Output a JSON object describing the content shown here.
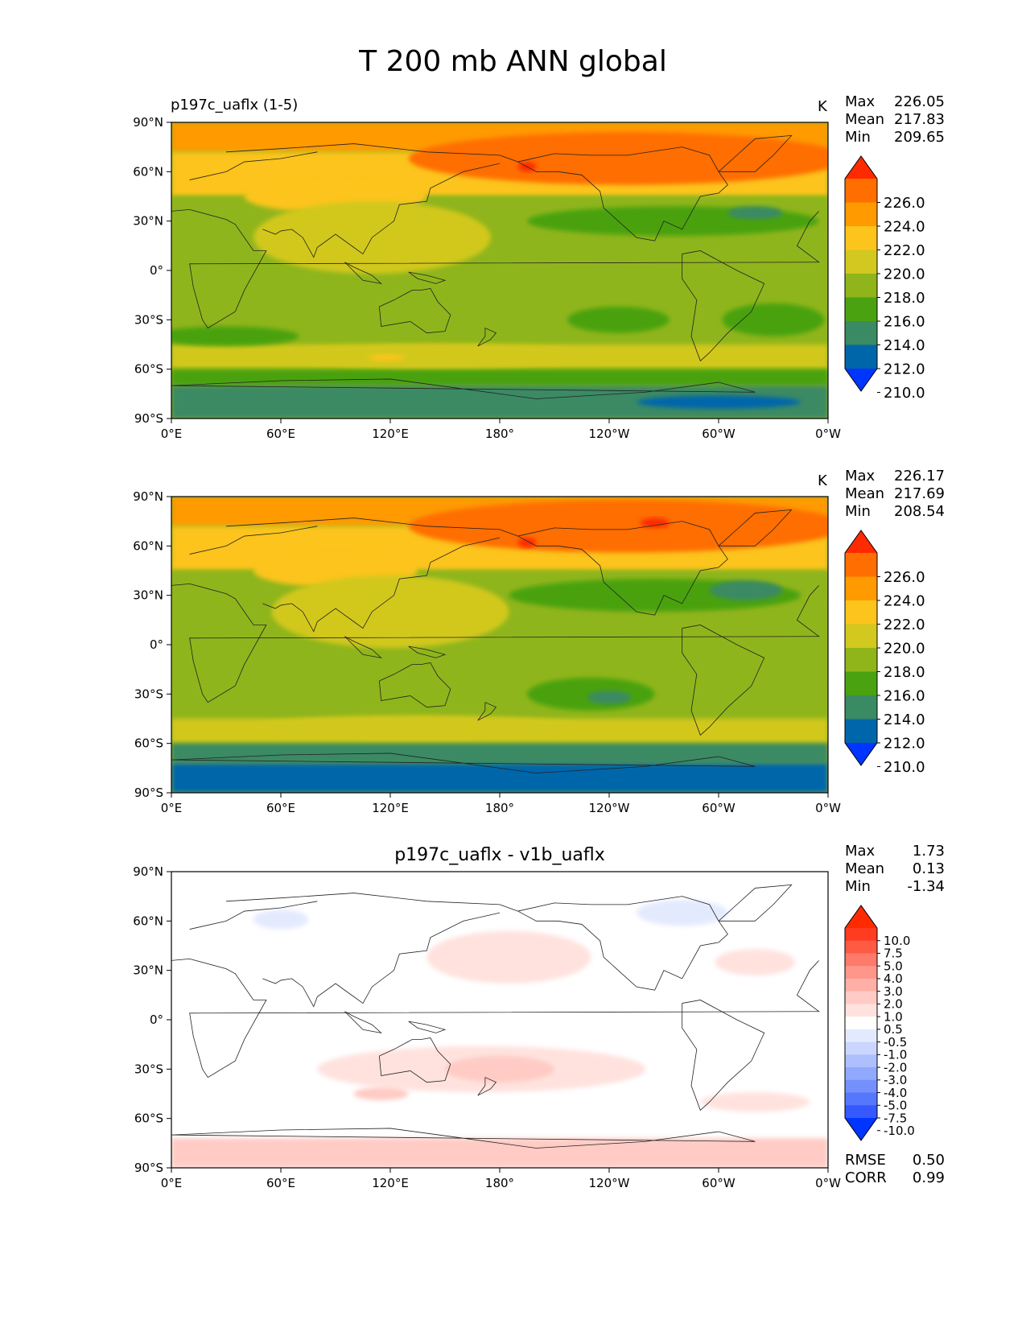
{
  "figure": {
    "title": "T 200 mb ANN global"
  },
  "axes": {
    "lat_ticks": [
      "90°N",
      "60°N",
      "30°N",
      "0°",
      "30°S",
      "60°S",
      "90°S"
    ],
    "lon_ticks": [
      "0°E",
      "60°E",
      "120°E",
      "180°",
      "120°W",
      "60°W",
      "0°W"
    ]
  },
  "panels": [
    {
      "left_title": "p197c_uaflx (1-5)",
      "center_title": "",
      "units": "K",
      "stats": [
        {
          "label": "Max",
          "value": "226.05"
        },
        {
          "label": "Mean",
          "value": "217.83"
        },
        {
          "label": "Min",
          "value": "209.65"
        }
      ],
      "colorbar": {
        "labels": [
          "226.0",
          "224.0",
          "222.0",
          "220.0",
          "218.0",
          "216.0",
          "214.0",
          "212.0",
          "210.0"
        ],
        "colors": [
          "#ff2a00",
          "#ff6e00",
          "#ff9a00",
          "#fcc41c",
          "#d2c81f",
          "#8fb51a",
          "#4aa211",
          "#3a8a63",
          "#0066aa",
          "#0035ff"
        ]
      },
      "footer": []
    },
    {
      "left_title": "",
      "center_title": "",
      "units": "K",
      "stats": [
        {
          "label": "Max",
          "value": "226.17"
        },
        {
          "label": "Mean",
          "value": "217.69"
        },
        {
          "label": "Min",
          "value": "208.54"
        }
      ],
      "colorbar": {
        "labels": [
          "226.0",
          "224.0",
          "222.0",
          "220.0",
          "218.0",
          "216.0",
          "214.0",
          "212.0",
          "210.0"
        ],
        "colors": [
          "#ff2a00",
          "#ff6e00",
          "#ff9a00",
          "#fcc41c",
          "#d2c81f",
          "#8fb51a",
          "#4aa211",
          "#3a8a63",
          "#0066aa",
          "#0035ff"
        ]
      },
      "footer": []
    },
    {
      "left_title": "",
      "center_title": "p197c_uaflx - v1b_uaflx",
      "units": "",
      "stats": [
        {
          "label": "Max",
          "value": "1.73"
        },
        {
          "label": "Mean",
          "value": "0.13"
        },
        {
          "label": "Min",
          "value": "-1.34"
        }
      ],
      "colorbar": {
        "labels": [
          "10.0",
          "7.5",
          "5.0",
          "4.0",
          "3.0",
          "2.0",
          "1.0",
          "0.5",
          "-0.5",
          "-1.0",
          "-2.0",
          "-3.0",
          "-4.0",
          "-5.0",
          "-7.5",
          "-10.0"
        ],
        "colors": [
          "#ff2a00",
          "#ff3b20",
          "#ff5a44",
          "#ff7a6a",
          "#ff968a",
          "#ffb0a6",
          "#ffcbc4",
          "#ffe2de",
          "#ffffff",
          "#e4eafe",
          "#cad6fe",
          "#adbffd",
          "#90a8fd",
          "#7390fd",
          "#5577fd",
          "#3558ff",
          "#0035ff"
        ]
      },
      "footer": [
        {
          "label": "RMSE",
          "value": "0.50"
        },
        {
          "label": "CORR",
          "value": "0.99"
        }
      ]
    }
  ],
  "chart_data": [
    {
      "type": "heatmap",
      "title": "p197c_uaflx (1-5)",
      "units": "K",
      "projection": "PlateCarree, central longitude 180",
      "xlim": [
        0,
        360
      ],
      "ylim": [
        -90,
        90
      ],
      "stats": {
        "max": 226.05,
        "mean": 217.83,
        "min": 209.65
      },
      "levels": [
        210,
        212,
        214,
        216,
        218,
        220,
        222,
        224,
        226
      ],
      "zonal_bands": [
        {
          "lat_range": [
            72,
            90
          ],
          "level": 222
        },
        {
          "lat_range": [
            45,
            72
          ],
          "level": 220
        },
        {
          "lat_range": [
            25,
            45
          ],
          "level": 216
        },
        {
          "lat_range": [
            -25,
            25
          ],
          "level": 216
        },
        {
          "lat_range": [
            -45,
            -25
          ],
          "level": 216
        },
        {
          "lat_range": [
            -60,
            -45
          ],
          "level": 218
        },
        {
          "lat_range": [
            -70,
            -60
          ],
          "level": 214
        },
        {
          "lat_range": [
            -90,
            -70
          ],
          "level": 212
        }
      ],
      "features": [
        {
          "lon": 250,
          "lat": 68,
          "dlon": 120,
          "dlat": 16,
          "level": 224
        },
        {
          "lon": 195,
          "lat": 63,
          "dlon": 5,
          "dlat": 3,
          "level": 226
        },
        {
          "lon": 90,
          "lat": 45,
          "dlon": 50,
          "dlat": 10,
          "level": 220
        },
        {
          "lon": 110,
          "lat": 20,
          "dlon": 65,
          "dlat": 22,
          "level": 218
        },
        {
          "lon": 275,
          "lat": 30,
          "dlon": 80,
          "dlat": 9,
          "level": 214
        },
        {
          "lon": 320,
          "lat": 35,
          "dlon": 15,
          "dlat": 4,
          "level": 212
        },
        {
          "lon": 245,
          "lat": -30,
          "dlon": 28,
          "dlat": 8,
          "level": 214
        },
        {
          "lon": 330,
          "lat": -30,
          "dlon": 28,
          "dlat": 10,
          "level": 214
        },
        {
          "lon": 30,
          "lat": -40,
          "dlon": 40,
          "dlat": 6,
          "level": 214
        },
        {
          "lon": 145,
          "lat": -52,
          "dlon": 90,
          "dlat": 7,
          "level": 218
        },
        {
          "lon": 118,
          "lat": -53,
          "dlon": 10,
          "dlat": 2,
          "level": 220
        },
        {
          "lon": 300,
          "lat": -80,
          "dlon": 45,
          "dlat": 4,
          "level": 210
        }
      ]
    },
    {
      "type": "heatmap",
      "title": "",
      "units": "K",
      "projection": "PlateCarree, central longitude 180",
      "xlim": [
        0,
        360
      ],
      "ylim": [
        -90,
        90
      ],
      "stats": {
        "max": 226.17,
        "mean": 217.69,
        "min": 208.54
      },
      "levels": [
        210,
        212,
        214,
        216,
        218,
        220,
        222,
        224,
        226
      ],
      "zonal_bands": [
        {
          "lat_range": [
            72,
            90
          ],
          "level": 222
        },
        {
          "lat_range": [
            45,
            72
          ],
          "level": 220
        },
        {
          "lat_range": [
            25,
            45
          ],
          "level": 216
        },
        {
          "lat_range": [
            -25,
            25
          ],
          "level": 216
        },
        {
          "lat_range": [
            -45,
            -25
          ],
          "level": 216
        },
        {
          "lat_range": [
            -60,
            -45
          ],
          "level": 218
        },
        {
          "lat_range": [
            -72,
            -60
          ],
          "level": 212
        },
        {
          "lat_range": [
            -90,
            -72
          ],
          "level": 210
        }
      ],
      "features": [
        {
          "lon": 250,
          "lat": 72,
          "dlon": 120,
          "dlat": 16,
          "level": 224
        },
        {
          "lon": 195,
          "lat": 62,
          "dlon": 5,
          "dlat": 3,
          "level": 226
        },
        {
          "lon": 265,
          "lat": 74,
          "dlon": 8,
          "dlat": 3,
          "level": 226
        },
        {
          "lon": 90,
          "lat": 45,
          "dlon": 45,
          "dlat": 10,
          "level": 220
        },
        {
          "lon": 120,
          "lat": 20,
          "dlon": 65,
          "dlat": 22,
          "level": 218
        },
        {
          "lon": 265,
          "lat": 30,
          "dlon": 80,
          "dlat": 10,
          "level": 214
        },
        {
          "lon": 315,
          "lat": 33,
          "dlon": 20,
          "dlat": 6,
          "level": 212
        },
        {
          "lon": 230,
          "lat": -30,
          "dlon": 35,
          "dlat": 10,
          "level": 214
        },
        {
          "lon": 240,
          "lat": -32,
          "dlon": 12,
          "dlat": 4,
          "level": 212
        },
        {
          "lon": 135,
          "lat": -50,
          "dlon": 90,
          "dlat": 7,
          "level": 218
        }
      ]
    },
    {
      "type": "heatmap",
      "title": "p197c_uaflx - v1b_uaflx",
      "projection": "PlateCarree, central longitude 180",
      "xlim": [
        0,
        360
      ],
      "ylim": [
        -90,
        90
      ],
      "stats": {
        "max": 1.73,
        "mean": 0.13,
        "min": -1.34,
        "rmse": 0.5,
        "corr": 0.99
      },
      "levels": [
        -10,
        -7.5,
        -5,
        -4,
        -3,
        -2,
        -1,
        -0.5,
        0.5,
        1,
        2,
        3,
        4,
        5,
        7.5,
        10
      ],
      "zonal_bands": [
        {
          "lat_range": [
            -90,
            -72
          ],
          "level": 1
        }
      ],
      "features": [
        {
          "lon": 270,
          "lat": 75,
          "dlon": 70,
          "dlat": 14,
          "level": -0.5
        },
        {
          "lon": 280,
          "lat": 65,
          "dlon": 25,
          "dlat": 8,
          "level": -1
        },
        {
          "lon": 60,
          "lat": 58,
          "dlon": 30,
          "dlat": 10,
          "level": -0.5
        },
        {
          "lon": 60,
          "lat": 61,
          "dlon": 15,
          "dlat": 6,
          "level": -1
        },
        {
          "lon": 185,
          "lat": 38,
          "dlon": 45,
          "dlat": 16,
          "level": 0.5
        },
        {
          "lon": 320,
          "lat": 35,
          "dlon": 22,
          "dlat": 8,
          "level": 0.5
        },
        {
          "lon": 170,
          "lat": -30,
          "dlon": 90,
          "dlat": 14,
          "level": 0.5
        },
        {
          "lon": 180,
          "lat": -30,
          "dlon": 30,
          "dlat": 8,
          "level": 1
        },
        {
          "lon": 115,
          "lat": -45,
          "dlon": 15,
          "dlat": 4,
          "level": 1
        },
        {
          "lon": 320,
          "lat": -50,
          "dlon": 30,
          "dlat": 6,
          "level": 0.5
        },
        {
          "lon": 40,
          "lat": -50,
          "dlon": 10,
          "dlat": 3,
          "level": -0.5
        }
      ]
    }
  ]
}
